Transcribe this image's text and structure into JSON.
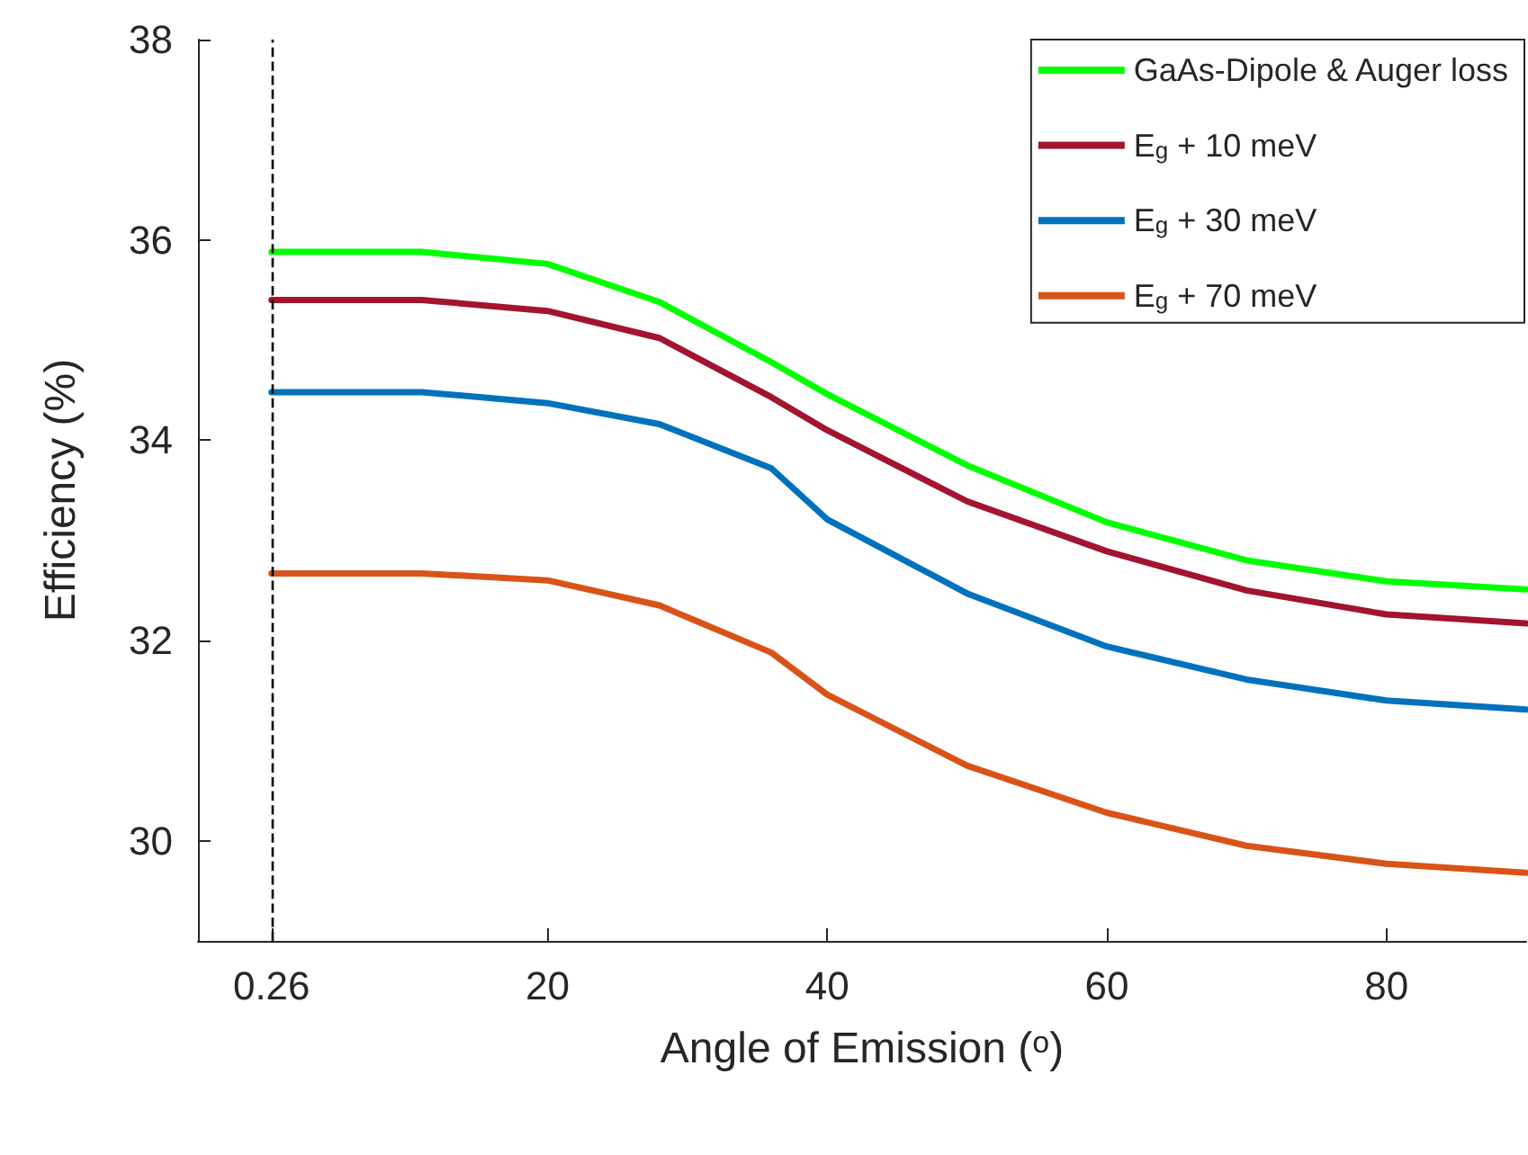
{
  "chart_data": {
    "type": "line",
    "xlabel": "Angle of Emission ($^{o}$)",
    "ylabel": "Efficiency (%)",
    "x": [
      0.26,
      11,
      20,
      28,
      36,
      40,
      50,
      60,
      70,
      80,
      90
    ],
    "xlim": [
      -5,
      90
    ],
    "ylim": [
      29,
      38
    ],
    "xticks": [
      0.26,
      20,
      40,
      60,
      80
    ],
    "yticks": [
      30,
      32,
      34,
      36,
      38
    ],
    "grid": false,
    "legend": "top right",
    "marker": "none",
    "line_style": "solid",
    "ref_lines": [
      {
        "axis": "x",
        "value": 0.26,
        "color": "#000000",
        "line_style": "dashed"
      }
    ],
    "series": [
      {
        "name": "GaAs-Dipole & Auger loss",
        "color": "#00ff00",
        "values": [
          35.88,
          35.88,
          35.76,
          35.38,
          34.78,
          34.46,
          33.75,
          33.18,
          32.8,
          32.59,
          32.51
        ]
      },
      {
        "name": "E$_{g}$ + 10 meV",
        "color": "#a2142f",
        "values": [
          35.4,
          35.4,
          35.29,
          35.02,
          34.43,
          34.1,
          33.39,
          32.89,
          32.5,
          32.26,
          32.17
        ]
      },
      {
        "name": "E$_{g}$ + 30 meV",
        "color": "#0072bd",
        "values": [
          34.48,
          34.48,
          34.37,
          34.16,
          33.72,
          33.21,
          32.47,
          31.94,
          31.61,
          31.4,
          31.31
        ]
      },
      {
        "name": "E$_{g}$ + 70 meV",
        "color": "#d95319",
        "values": [
          32.67,
          32.67,
          32.6,
          32.35,
          31.88,
          31.46,
          30.75,
          30.28,
          29.95,
          29.77,
          29.68
        ]
      }
    ]
  }
}
